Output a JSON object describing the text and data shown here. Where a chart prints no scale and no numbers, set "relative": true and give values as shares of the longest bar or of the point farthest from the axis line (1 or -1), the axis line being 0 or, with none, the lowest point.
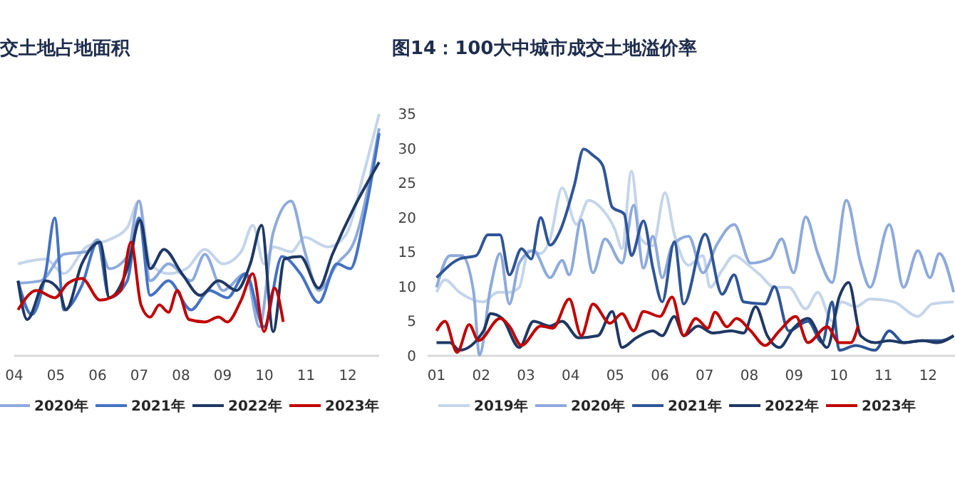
{
  "chart_data": [
    {
      "type": "line",
      "title": "交土地占地面积",
      "relative": true,
      "legend": "bottom",
      "xlim": [
        4.0,
        12.75
      ],
      "xticks": [
        {
          "value": 4,
          "label": "04"
        },
        {
          "value": 5,
          "label": "05"
        },
        {
          "value": 6,
          "label": "06"
        },
        {
          "value": 7,
          "label": "07"
        },
        {
          "value": 8,
          "label": "08"
        },
        {
          "value": 9,
          "label": "09"
        },
        {
          "value": 10,
          "label": "10"
        },
        {
          "value": 11,
          "label": "11"
        },
        {
          "value": 12,
          "label": "12"
        }
      ],
      "series": [
        {
          "color": "#c5d5ea",
          "x": [
            4.09,
            4.75,
            5.19,
            5.73,
            6.28,
            6.71,
            6.99,
            7.26,
            7.7,
            8.13,
            8.57,
            9.0,
            9.44,
            9.72,
            9.99,
            10.21,
            10.64,
            10.97,
            11.52,
            11.95,
            12.39,
            12.75
          ],
          "values": [
            0.38,
            0.4,
            0.34,
            0.45,
            0.48,
            0.53,
            0.64,
            0.38,
            0.34,
            0.36,
            0.44,
            0.38,
            0.43,
            0.54,
            0.38,
            0.45,
            0.43,
            0.49,
            0.45,
            0.5,
            0.76,
            1
          ]
        },
        {
          "name": "2020年",
          "color": "#8eaadb",
          "x": [
            4.09,
            4.64,
            5.19,
            5.73,
            6.0,
            6.28,
            6.71,
            6.99,
            7.26,
            7.7,
            8.24,
            8.57,
            9.0,
            9.55,
            9.88,
            10.21,
            10.64,
            10.97,
            11.3,
            11.74,
            12.17,
            12.75
          ],
          "values": [
            0.3,
            0.31,
            0.42,
            0.43,
            0.48,
            0.36,
            0.41,
            0.64,
            0.31,
            0.38,
            0.31,
            0.42,
            0.27,
            0.34,
            0.12,
            0.51,
            0.64,
            0.43,
            0.27,
            0.38,
            0.48,
            0.94
          ]
        },
        {
          "name": "2021年",
          "color": "#4472c4",
          "x": [
            4.09,
            4.42,
            4.75,
            4.97,
            5.19,
            5.62,
            6.0,
            6.28,
            6.71,
            6.99,
            7.26,
            7.7,
            8.24,
            8.68,
            9.11,
            9.55,
            9.99,
            10.42,
            10.86,
            11.3,
            11.74,
            12.06,
            12.39,
            12.75
          ],
          "values": [
            0.31,
            0.17,
            0.34,
            0.57,
            0.19,
            0.29,
            0.47,
            0.24,
            0.31,
            0.57,
            0.25,
            0.31,
            0.19,
            0.27,
            0.24,
            0.34,
            0.12,
            0.41,
            0.34,
            0.22,
            0.38,
            0.36,
            0.57,
            0.92
          ]
        },
        {
          "name": "2022年",
          "color": "#1f3864",
          "x": [
            4.09,
            4.31,
            4.75,
            5.08,
            5.24,
            5.62,
            6.06,
            6.28,
            6.71,
            7.02,
            7.26,
            7.59,
            8.02,
            8.46,
            8.9,
            9.33,
            9.66,
            9.93,
            10.21,
            10.48,
            10.86,
            11.3,
            11.63,
            12.17,
            12.75
          ],
          "values": [
            0.31,
            0.15,
            0.31,
            0.27,
            0.19,
            0.38,
            0.47,
            0.24,
            0.36,
            0.56,
            0.36,
            0.44,
            0.34,
            0.25,
            0.31,
            0.27,
            0.38,
            0.54,
            0.1,
            0.4,
            0.41,
            0.28,
            0.42,
            0.62,
            0.8
          ]
        },
        {
          "name": "2023年",
          "color": "#c00000",
          "x": [
            4.09,
            4.53,
            4.97,
            5.29,
            5.62,
            6.06,
            6.55,
            6.8,
            7.04,
            7.26,
            7.48,
            7.7,
            7.91,
            8.19,
            8.57,
            8.9,
            9.11,
            9.44,
            9.72,
            9.99,
            10.24,
            10.45
          ],
          "values": [
            0.19,
            0.27,
            0.24,
            0.3,
            0.32,
            0.23,
            0.27,
            0.47,
            0.21,
            0.16,
            0.21,
            0.18,
            0.27,
            0.15,
            0.14,
            0.16,
            0.14,
            0.23,
            0.34,
            0.1,
            0.28,
            0.14
          ]
        }
      ]
    },
    {
      "type": "line",
      "title": "图14：100大中城市成交土地溢价率",
      "legend": "bottom",
      "xlim": [
        0.8,
        12.6
      ],
      "ylim": [
        0,
        35
      ],
      "yticks": [
        0,
        5,
        10,
        15,
        20,
        25,
        30,
        35
      ],
      "xticks": [
        {
          "value": 1,
          "label": "01"
        },
        {
          "value": 2,
          "label": "02"
        },
        {
          "value": 3,
          "label": "03"
        },
        {
          "value": 4,
          "label": "04"
        },
        {
          "value": 5,
          "label": "05"
        },
        {
          "value": 6,
          "label": "06"
        },
        {
          "value": 7,
          "label": "07"
        },
        {
          "value": 8,
          "label": "08"
        },
        {
          "value": 9,
          "label": "09"
        },
        {
          "value": 10,
          "label": "10"
        },
        {
          "value": 11,
          "label": "11"
        },
        {
          "value": 12,
          "label": "12"
        }
      ],
      "series": [
        {
          "name": "2019年",
          "color": "#c5d5ea",
          "x": [
            1.0,
            1.19,
            1.51,
            2.05,
            2.37,
            2.63,
            2.85,
            3.06,
            3.33,
            3.54,
            3.81,
            4.13,
            4.4,
            4.72,
            4.99,
            5.15,
            5.36,
            5.57,
            5.84,
            6.11,
            6.32,
            6.64,
            6.96,
            7.12,
            7.39,
            7.66,
            7.98,
            8.24,
            8.56,
            8.88,
            9.26,
            9.53,
            9.85,
            10.06,
            10.38,
            10.7,
            11.23,
            11.77,
            12.09,
            12.57
          ],
          "values": [
            9.2,
            11,
            9.2,
            7.8,
            9.2,
            9.2,
            9.9,
            15.2,
            14.8,
            16.9,
            24.3,
            19,
            22.5,
            21.1,
            18.3,
            15.5,
            26.7,
            16.9,
            15.9,
            23.6,
            17.6,
            13.1,
            14.5,
            9.9,
            12.4,
            14.5,
            13.1,
            11.7,
            9.9,
            9.9,
            6.8,
            9.2,
            5,
            7.8,
            7.1,
            8.2,
            7.8,
            5.7,
            7.5,
            7.8
          ]
        },
        {
          "name": "2020年",
          "color": "#8eaadb",
          "x": [
            1.0,
            1.3,
            1.57,
            1.83,
            1.96,
            2.21,
            2.42,
            2.63,
            2.85,
            3.17,
            3.54,
            3.81,
            3.97,
            4.24,
            4.5,
            4.77,
            5.15,
            5.41,
            5.63,
            5.84,
            6.05,
            6.27,
            6.64,
            6.96,
            7.28,
            7.66,
            8.03,
            8.46,
            8.72,
            8.99,
            9.26,
            9.53,
            9.85,
            10.17,
            10.49,
            10.7,
            11.13,
            11.45,
            11.77,
            12.04,
            12.25,
            12.57
          ],
          "values": [
            9.9,
            14.5,
            14.5,
            9.2,
            0.1,
            9.9,
            14.8,
            7.5,
            13.4,
            15.2,
            11.3,
            13.8,
            11.7,
            19.7,
            12,
            16.9,
            13.4,
            21.8,
            12.7,
            17.3,
            11.3,
            15.9,
            17.3,
            12,
            16.2,
            19,
            13.4,
            14.1,
            16.9,
            12,
            20.1,
            14.8,
            10.6,
            22.5,
            13.4,
            9.9,
            19,
            9.9,
            15.2,
            11.3,
            14.8,
            9.2
          ]
        },
        {
          "name": "2021年",
          "color": "#2f5597",
          "x": [
            1.0,
            1.51,
            1.89,
            2.15,
            2.42,
            2.63,
            2.9,
            3.12,
            3.33,
            3.54,
            3.76,
            4.08,
            4.29,
            4.5,
            4.72,
            4.93,
            5.2,
            5.36,
            5.63,
            5.84,
            6.05,
            6.32,
            6.53,
            7.01,
            7.39,
            7.66,
            7.87,
            8.35,
            8.56,
            8.88,
            9.31,
            9.63,
            9.85,
            10.01,
            10.38,
            10.81,
            11.13,
            11.45,
            11.88,
            12.3,
            12.57
          ],
          "values": [
            11.3,
            14,
            14.5,
            17.5,
            17.5,
            11.7,
            15.5,
            14,
            20,
            16,
            18,
            24.6,
            29.9,
            29,
            27.5,
            21.5,
            20.5,
            14.5,
            19.5,
            12.7,
            7.8,
            16.5,
            7.5,
            17.6,
            8.9,
            11.7,
            7.8,
            7.5,
            10,
            3.6,
            5,
            1.9,
            7.8,
            0.8,
            1.5,
            0.8,
            3.6,
            1.9,
            2.2,
            2.2,
            2.9
          ]
        },
        {
          "name": "2022年",
          "color": "#1f3864",
          "x": [
            1.0,
            1.3,
            1.51,
            2.05,
            2.21,
            2.47,
            2.85,
            3.17,
            3.54,
            3.81,
            4.18,
            4.61,
            4.93,
            5.15,
            5.47,
            5.84,
            6.05,
            6.32,
            6.53,
            6.85,
            7.18,
            7.6,
            7.87,
            8.14,
            8.4,
            8.67,
            8.99,
            9.31,
            9.74,
            10.01,
            10.22,
            10.49,
            10.81,
            11.13,
            11.45,
            11.88,
            12.2,
            12.57
          ],
          "values": [
            1.9,
            1.9,
            0.8,
            3.6,
            6.1,
            5.4,
            1.2,
            5,
            4.3,
            5,
            2.6,
            2.9,
            6.4,
            1.2,
            2.6,
            3.6,
            2.9,
            5.7,
            2.9,
            4.3,
            3.3,
            3.6,
            3.3,
            7.1,
            2.9,
            1.2,
            4,
            5.4,
            1.2,
            8.5,
            10.6,
            2.9,
            1.9,
            2.2,
            1.9,
            2.2,
            1.9,
            2.9
          ]
        },
        {
          "name": "2023年",
          "color": "#c00000",
          "x": [
            1.0,
            1.19,
            1.46,
            1.73,
            1.94,
            2.42,
            2.63,
            2.9,
            3.33,
            3.6,
            3.97,
            4.24,
            4.5,
            4.88,
            5.15,
            5.41,
            5.63,
            6.0,
            6.27,
            6.53,
            6.8,
            7.07,
            7.23,
            7.5,
            7.71,
            8.03,
            8.35,
            8.67,
            9.04,
            9.31,
            9.74,
            10.01,
            10.27,
            10.43
          ],
          "values": [
            3.6,
            5,
            0.5,
            4.5,
            2.2,
            5.4,
            4.3,
            1.5,
            4.3,
            4,
            8.2,
            2.9,
            7.5,
            4.7,
            6.1,
            3.6,
            6.4,
            5.7,
            8.5,
            2.9,
            5.4,
            4,
            6.3,
            4.2,
            5.4,
            3.6,
            1.5,
            3.6,
            5.7,
            1.9,
            4.2,
            1.9,
            1.9,
            4.3
          ]
        }
      ]
    }
  ]
}
